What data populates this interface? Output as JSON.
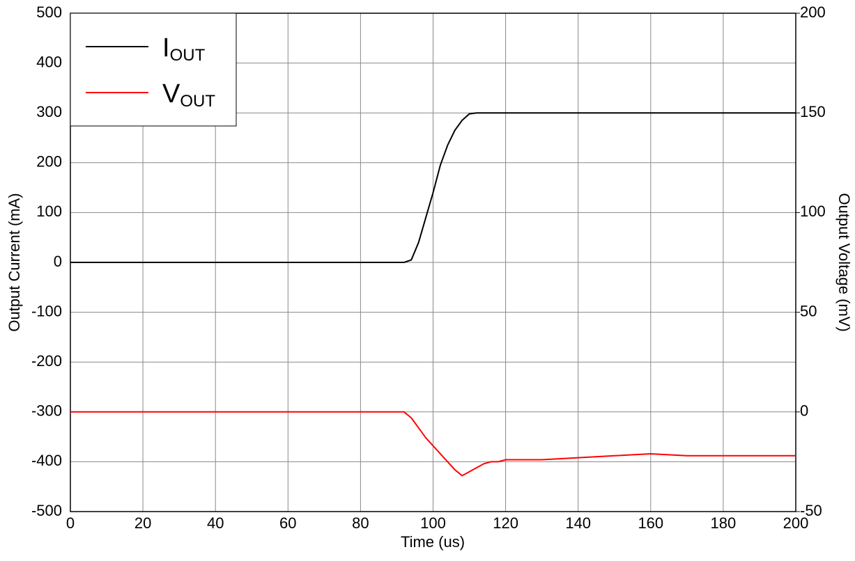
{
  "chart_data": {
    "type": "line",
    "x_label": "Time (us)",
    "y_label": "Output Current (mA)",
    "y2_label": "Output Voltage (mV)",
    "x": [
      0,
      10,
      20,
      30,
      40,
      50,
      60,
      70,
      80,
      90,
      92,
      94,
      96,
      98,
      100,
      102,
      104,
      106,
      108,
      110,
      112,
      114,
      116,
      118,
      120,
      130,
      140,
      150,
      160,
      170,
      180,
      190,
      200
    ],
    "series": [
      {
        "name": "IOUT",
        "color": "#000000",
        "axis": "y",
        "values": [
          0,
          0,
          0,
          0,
          0,
          0,
          0,
          0,
          0,
          0,
          0,
          5,
          40,
          90,
          140,
          195,
          235,
          265,
          285,
          298,
          300,
          300,
          300,
          300,
          300,
          300,
          300,
          300,
          300,
          300,
          300,
          300,
          300
        ]
      },
      {
        "name": "VOUT",
        "color": "#ff0000",
        "axis": "y2",
        "values": [
          0,
          0,
          0,
          0,
          0,
          0,
          0,
          0,
          0,
          0,
          0,
          -3,
          -8,
          -13,
          -17,
          -21,
          -25,
          -29,
          -32,
          -30,
          -28,
          -26,
          -25,
          -25,
          -24,
          -24,
          -23,
          -22,
          -21,
          -22,
          -22,
          -22,
          -22
        ]
      }
    ],
    "xlim": [
      0,
      200
    ],
    "xticks": [
      0,
      20,
      40,
      60,
      80,
      100,
      120,
      140,
      160,
      180,
      200
    ],
    "ylim": [
      -500,
      500
    ],
    "yticks": [
      -500,
      -400,
      -300,
      -200,
      -100,
      0,
      100,
      200,
      300,
      400,
      500
    ],
    "y2lim": [
      -50,
      200
    ],
    "y2ticks": [
      -50,
      0,
      50,
      100,
      150,
      200
    ],
    "grid": true,
    "legend": "upper-left"
  }
}
